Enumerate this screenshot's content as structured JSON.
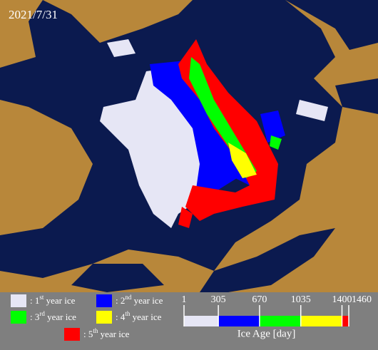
{
  "date": "2021/7/31",
  "legend": [
    {
      "prefix": ": 1",
      "sup": "st",
      "suffix": " year ice",
      "color": "#e6e6f5"
    },
    {
      "prefix": ": 2",
      "sup": "nd",
      "suffix": " year ice",
      "color": "#0000ff"
    },
    {
      "prefix": ": 3",
      "sup": "rd",
      "suffix": " year ice",
      "color": "#00ff00"
    },
    {
      "prefix": ": 4",
      "sup": "th",
      "suffix": " year ice",
      "color": "#ffff00"
    },
    {
      "prefix": ": 5",
      "sup": "th",
      "suffix": " year ice",
      "color": "#ff0000"
    }
  ],
  "colorbar": {
    "label": "Ice Age [day]",
    "ticks": [
      1,
      305,
      670,
      1035,
      1400,
      1460
    ],
    "colors": [
      "#e6e6f5",
      "#0000ff",
      "#00ff00",
      "#ffff00",
      "#ff0000"
    ]
  }
}
